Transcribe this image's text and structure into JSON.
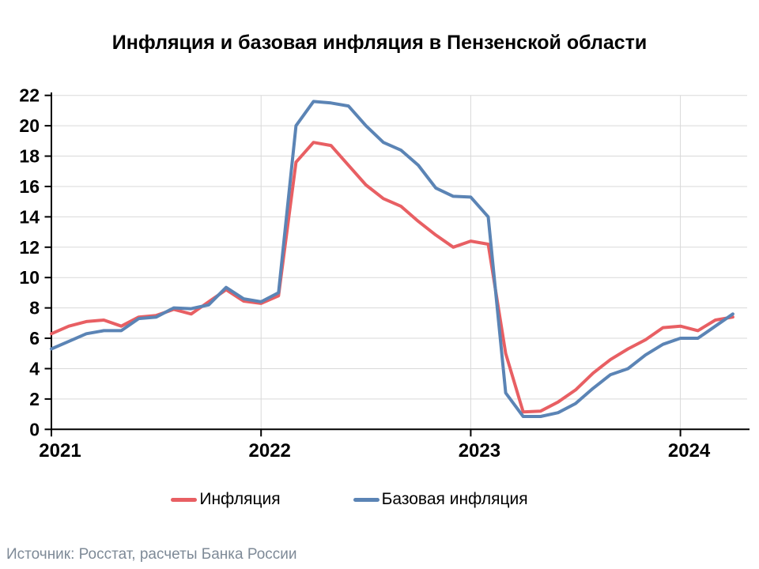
{
  "title": "Инфляция и базовая инфляция в Пензенской области",
  "source": "Источник: Росстат, расчеты Банка России",
  "legend": [
    {
      "label": "Инфляция",
      "color": "#e85f63"
    },
    {
      "label": "Базовая инфляция",
      "color": "#5b84b5"
    }
  ],
  "colors": {
    "inflation_line": "#e85f63",
    "core_inflation_line": "#5b84b5",
    "gridline": "#d9d9d9",
    "axis": "#000000",
    "source_text": "#7e8a97"
  },
  "chart_data": {
    "type": "line",
    "title": "Инфляция и базовая инфляция в Пензенской области",
    "xlabel": "",
    "ylabel": "",
    "ylim": [
      0,
      22
    ],
    "grid": true,
    "legend_position": "bottom",
    "y_ticks": [
      0,
      2,
      4,
      6,
      8,
      10,
      12,
      14,
      16,
      18,
      20,
      22
    ],
    "x_tick_labels": [
      "2021",
      "2022",
      "2023",
      "2024"
    ],
    "x_tick_month_indices": [
      0,
      12,
      24,
      36
    ],
    "x": [
      "2021-01",
      "2021-02",
      "2021-03",
      "2021-04",
      "2021-05",
      "2021-06",
      "2021-07",
      "2021-08",
      "2021-09",
      "2021-10",
      "2021-11",
      "2021-12",
      "2022-01",
      "2022-02",
      "2022-03",
      "2022-04",
      "2022-05",
      "2022-06",
      "2022-07",
      "2022-08",
      "2022-09",
      "2022-10",
      "2022-11",
      "2022-12",
      "2023-01",
      "2023-02",
      "2023-03",
      "2023-04",
      "2023-05",
      "2023-06",
      "2023-07",
      "2023-08",
      "2023-09",
      "2023-10",
      "2023-11",
      "2023-12",
      "2024-01",
      "2024-02",
      "2024-03",
      "2024-04"
    ],
    "series": [
      {
        "name": "Инфляция",
        "color": "#e85f63",
        "values": [
          6.3,
          6.8,
          7.1,
          7.2,
          6.8,
          7.4,
          7.5,
          7.9,
          7.6,
          8.4,
          9.2,
          8.45,
          8.3,
          8.8,
          17.6,
          18.9,
          18.7,
          17.4,
          16.1,
          15.2,
          14.7,
          13.7,
          12.8,
          12.0,
          12.4,
          12.2,
          5.0,
          1.15,
          1.2,
          1.8,
          2.6,
          3.7,
          4.6,
          5.3,
          5.9,
          6.7,
          6.8,
          6.5,
          7.2,
          7.4
        ]
      },
      {
        "name": "Базовая инфляция",
        "color": "#5b84b5",
        "values": [
          5.3,
          5.8,
          6.3,
          6.5,
          6.5,
          7.3,
          7.4,
          8.0,
          7.95,
          8.2,
          9.35,
          8.6,
          8.4,
          9.0,
          20.0,
          21.6,
          21.5,
          21.3,
          20.0,
          18.9,
          18.4,
          17.4,
          15.9,
          15.35,
          15.3,
          14.0,
          2.4,
          0.85,
          0.85,
          1.1,
          1.7,
          2.7,
          3.6,
          4.0,
          4.9,
          5.6,
          6.0,
          6.0,
          6.8,
          7.6
        ]
      }
    ]
  }
}
